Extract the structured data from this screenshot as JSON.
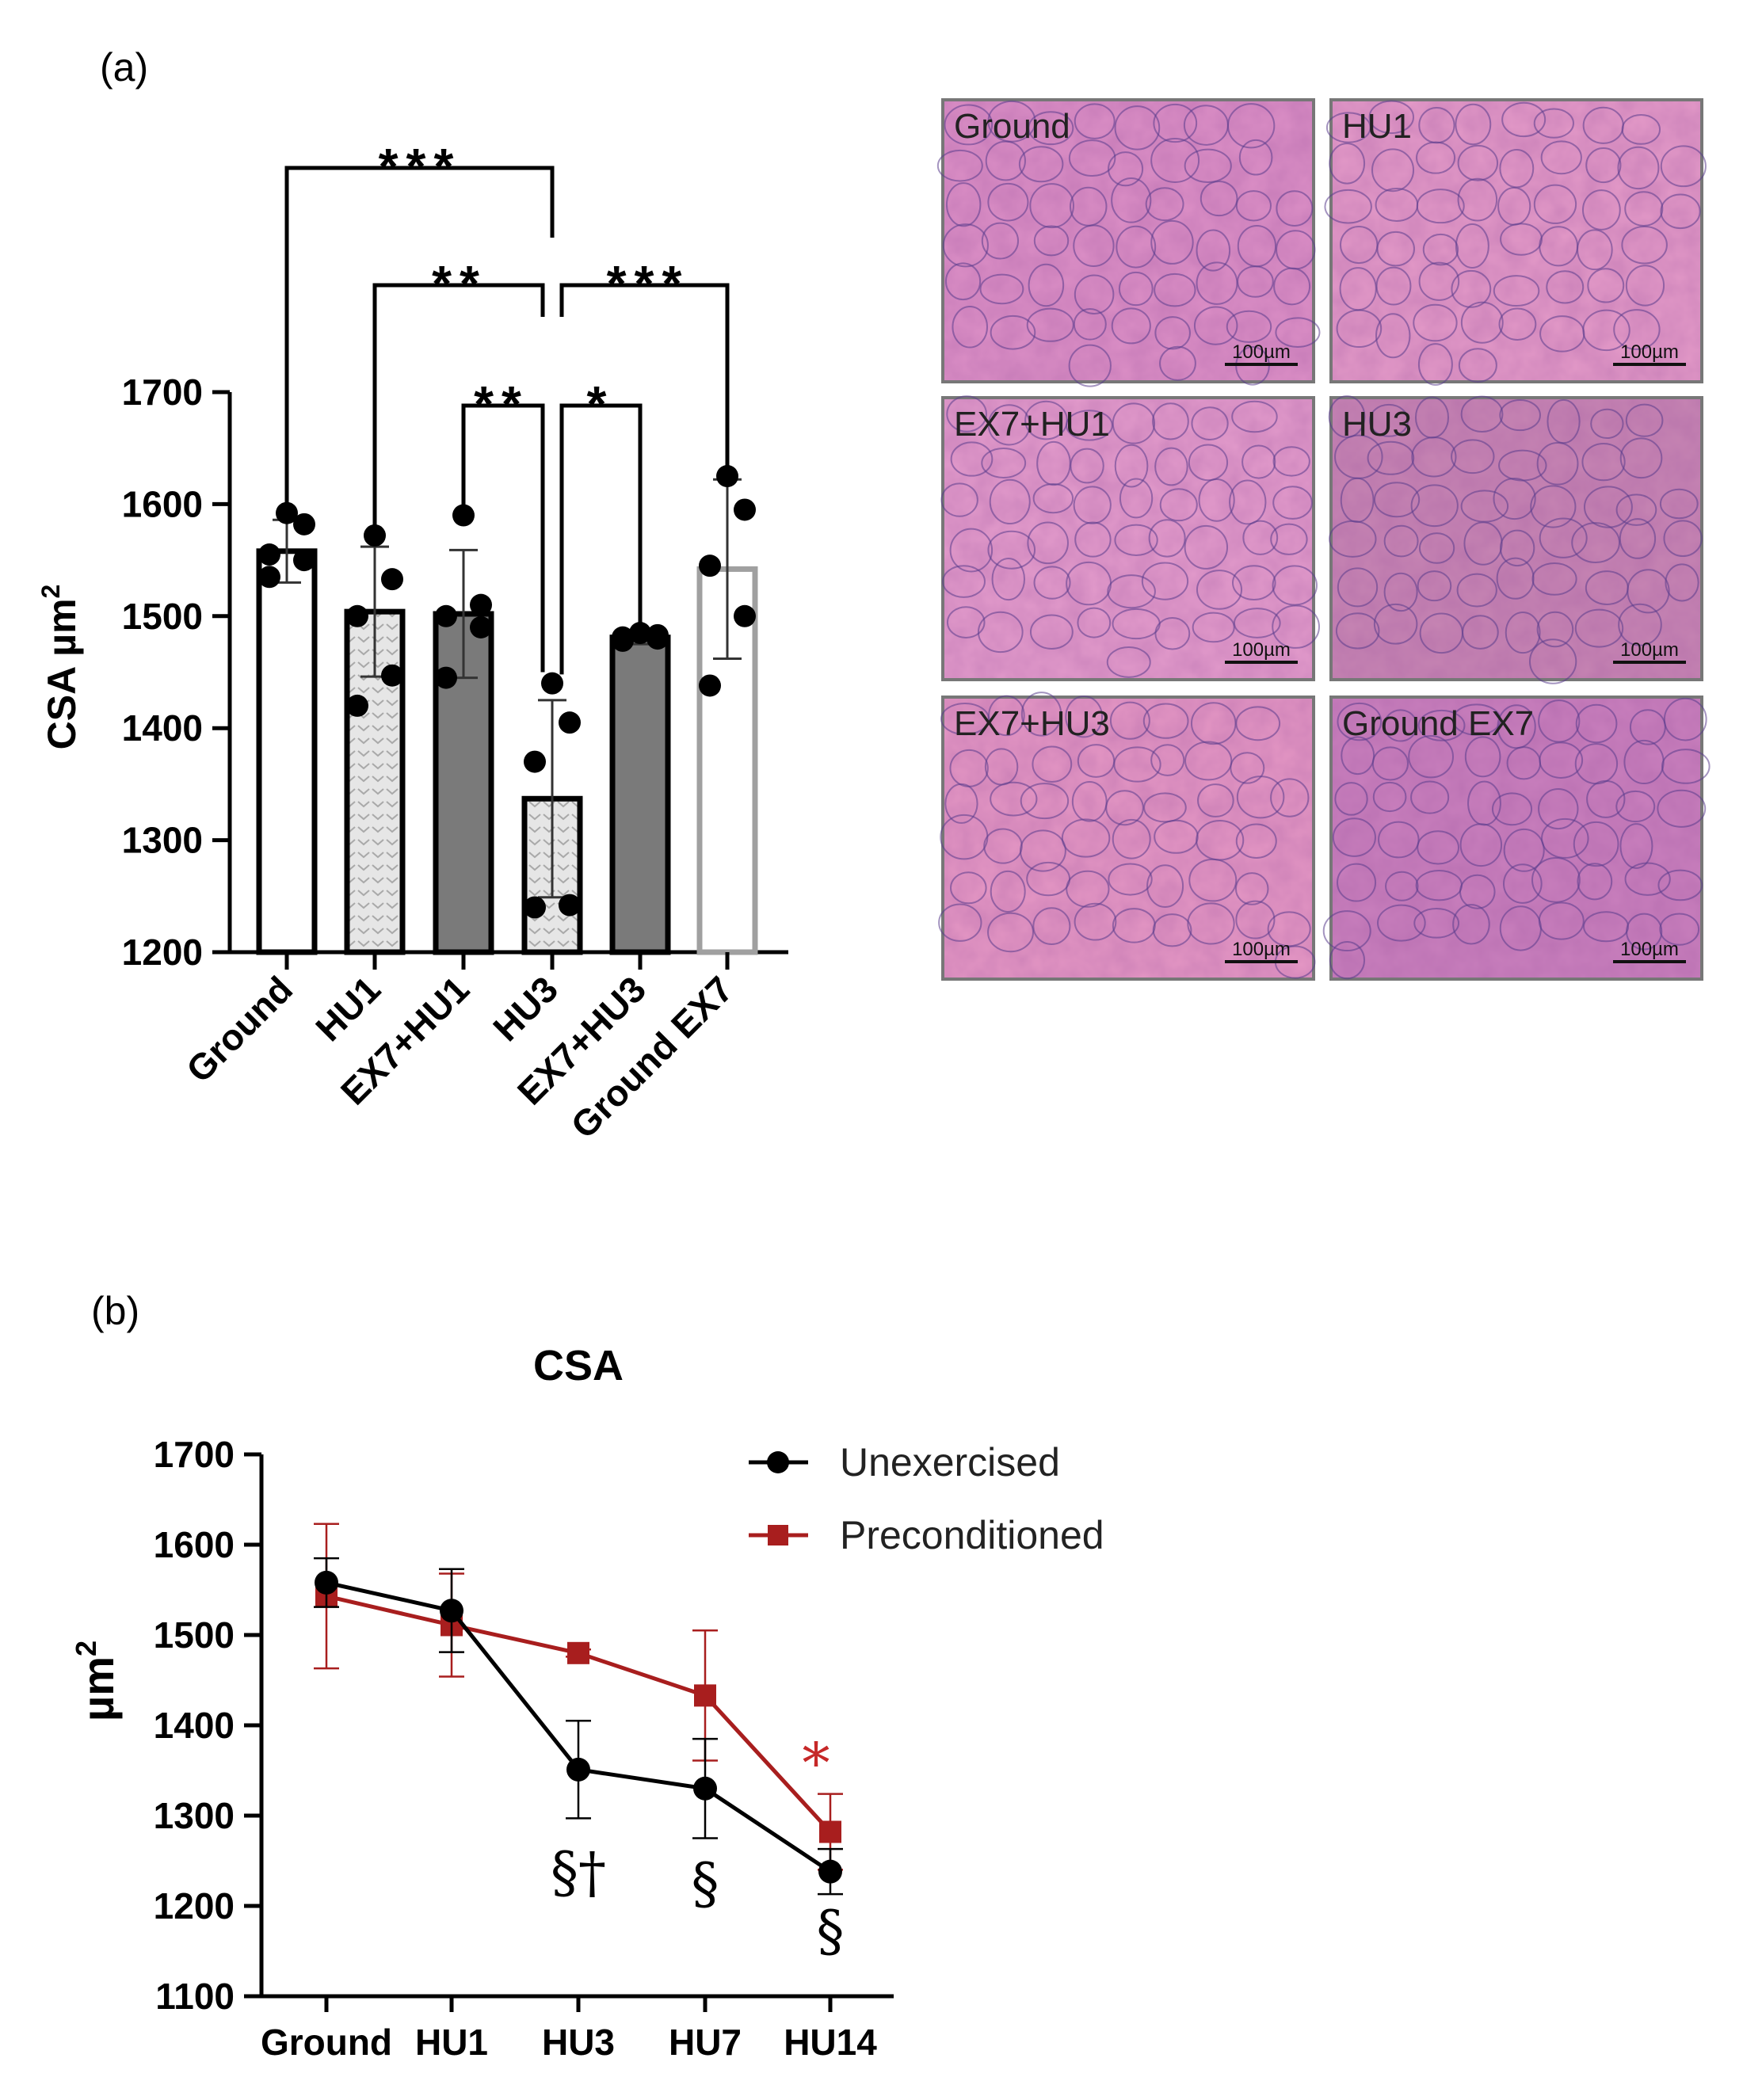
{
  "panel_a": {
    "label": "(a)",
    "chart_data": {
      "type": "bar",
      "title": "",
      "ylabel": "CSA µm",
      "ylabel_sup": "2",
      "ylim": [
        1200,
        1700
      ],
      "yticks": [
        1200,
        1300,
        1400,
        1500,
        1600,
        1700
      ],
      "categories": [
        "Ground",
        "HU1",
        "EX7+HU1",
        "HU3",
        "EX7+HU3",
        "Ground EX7"
      ],
      "values": [
        1558,
        1504,
        1502,
        1337,
        1481,
        1542
      ],
      "sd": [
        28,
        58,
        57,
        88,
        6,
        80
      ],
      "points": [
        [
          1535,
          1550,
          1555,
          1582,
          1592
        ],
        [
          1420,
          1447,
          1500,
          1533,
          1572
        ],
        [
          1445,
          1490,
          1500,
          1510,
          1590
        ],
        [
          1240,
          1242,
          1370,
          1405,
          1440
        ],
        [
          1478,
          1480,
          1481,
          1483,
          1485
        ],
        [
          1438,
          1500,
          1545,
          1595,
          1625
        ]
      ],
      "comparisons": [
        {
          "from": "Ground",
          "to": "HU3",
          "stars": "***"
        },
        {
          "from": "HU1",
          "to": "HU3",
          "stars": "**"
        },
        {
          "from": "HU3",
          "to": "Ground EX7",
          "stars": "***"
        },
        {
          "from": "EX7+HU1",
          "to": "HU3",
          "stars": "**"
        },
        {
          "from": "HU3",
          "to": "EX7+HU3",
          "stars": "*"
        }
      ]
    },
    "micrographs": [
      {
        "label": "Ground",
        "scale": "100µm",
        "tint": "#dc8fc6"
      },
      {
        "label": "HU1",
        "scale": "100µm",
        "tint": "#e49ac8"
      },
      {
        "label": "EX7+HU1",
        "scale": "100µm",
        "tint": "#e49ccc"
      },
      {
        "label": "HU3",
        "scale": "100µm",
        "tint": "#c785b3"
      },
      {
        "label": "EX7+HU3",
        "scale": "100µm",
        "tint": "#e597c4"
      },
      {
        "label": "Ground EX7",
        "scale": "100µm",
        "tint": "#c97fbd"
      }
    ]
  },
  "panel_b": {
    "label": "(b)",
    "chart_data": {
      "type": "line",
      "title": "CSA",
      "ylabel": "µm",
      "ylabel_sup": "2",
      "ylim": [
        1100,
        1700
      ],
      "yticks": [
        1100,
        1200,
        1300,
        1400,
        1500,
        1600,
        1700
      ],
      "categories": [
        "Ground",
        "HU1",
        "HU3",
        "HU7",
        "HU14"
      ],
      "legend": "top-right",
      "series": [
        {
          "name": "Unexercised",
          "color": "#000000",
          "marker": "circle",
          "values": [
            1558,
            1527,
            1351,
            1330,
            1238
          ],
          "sd": [
            27,
            46,
            54,
            55,
            25
          ]
        },
        {
          "name": "Preconditioned",
          "color": "#a81e1e",
          "marker": "square",
          "values": [
            1543,
            1511,
            1480,
            1433,
            1282
          ],
          "sd": [
            80,
            57,
            4,
            72,
            42
          ]
        }
      ],
      "annotations": [
        {
          "category": "HU3",
          "text": "§†",
          "color": "#000000"
        },
        {
          "category": "HU7",
          "text": "§",
          "color": "#000000"
        },
        {
          "category": "HU14",
          "text": "§",
          "color": "#000000"
        },
        {
          "category": "HU14",
          "text": "*",
          "color": "#c62828"
        }
      ]
    }
  }
}
